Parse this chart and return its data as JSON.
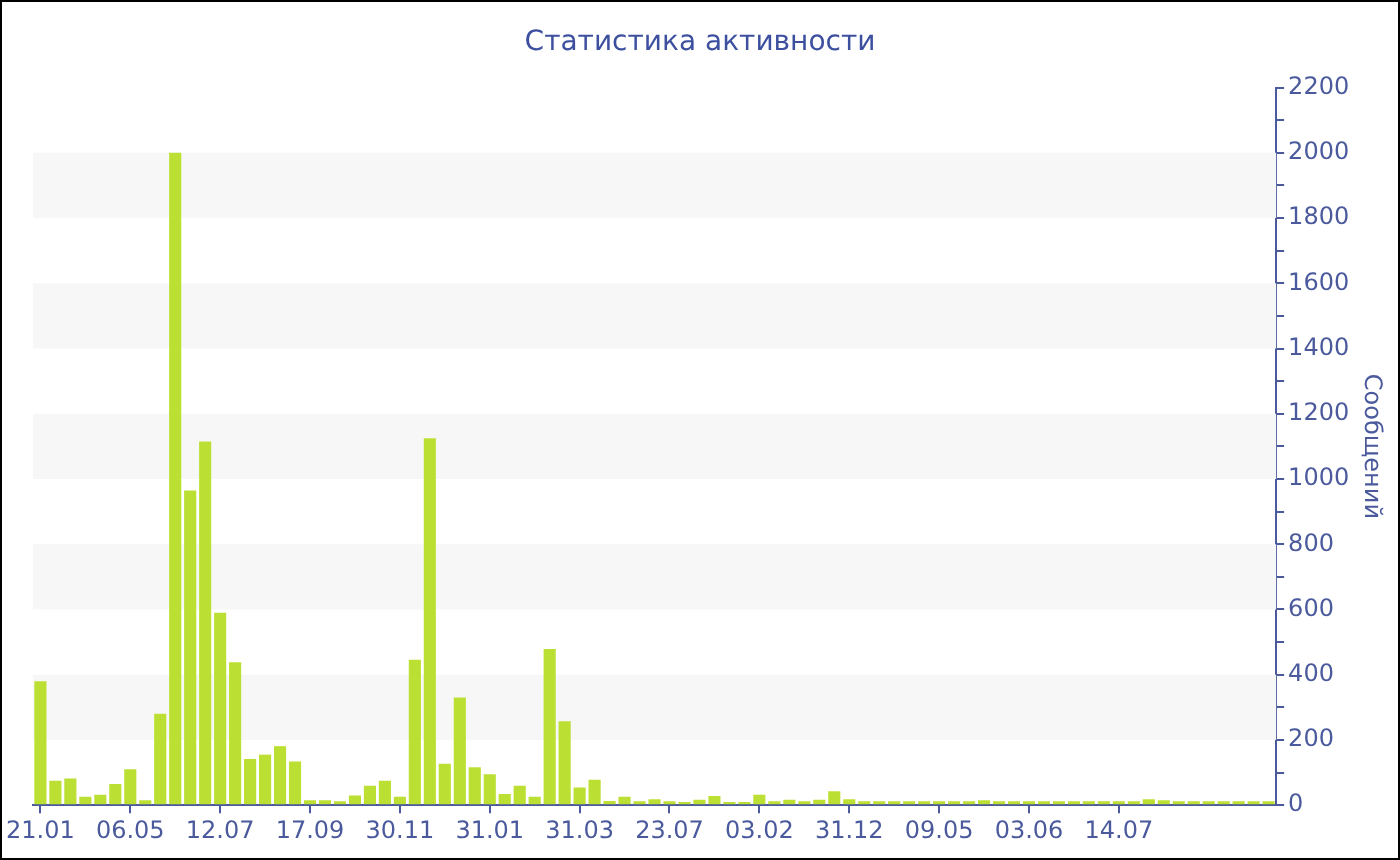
{
  "chart_data": {
    "type": "bar",
    "title": "Статистика активности",
    "ylabel": "Сообщений",
    "categories": [
      "21.01",
      null,
      null,
      null,
      null,
      null,
      "06.05",
      null,
      null,
      null,
      null,
      null,
      "12.07",
      null,
      null,
      null,
      null,
      null,
      "17.09",
      null,
      null,
      null,
      null,
      null,
      "30.11",
      null,
      null,
      null,
      null,
      null,
      "31.01",
      null,
      null,
      null,
      null,
      null,
      "31.03",
      null,
      null,
      null,
      null,
      null,
      "23.07",
      null,
      null,
      null,
      null,
      null,
      "03.02",
      null,
      null,
      null,
      null,
      null,
      "31.12",
      null,
      null,
      null,
      null,
      null,
      "09.05",
      null,
      null,
      null,
      null,
      null,
      "03.06",
      null,
      null,
      null,
      null,
      null,
      "14.07",
      null,
      null,
      null,
      null,
      null,
      null,
      null,
      null,
      null,
      null
    ],
    "values": [
      380,
      75,
      82,
      26,
      32,
      65,
      110,
      15,
      280,
      2000,
      965,
      1115,
      590,
      438,
      142,
      155,
      181,
      134,
      15,
      15,
      12,
      30,
      60,
      75,
      26,
      446,
      1125,
      127,
      330,
      116,
      95,
      34,
      60,
      26,
      479,
      257,
      54,
      78,
      13,
      26,
      12,
      18,
      12,
      10,
      17,
      28,
      10,
      10,
      32,
      12,
      17,
      12,
      17,
      43,
      18,
      12,
      12,
      12,
      12,
      12,
      12,
      12,
      12,
      15,
      12,
      12,
      12,
      12,
      12,
      12,
      12,
      12,
      12,
      12,
      18,
      15,
      12,
      12,
      12,
      12,
      12,
      12,
      12
    ],
    "color": "#bbe033",
    "ylim": [
      0,
      2200
    ],
    "yticks": [
      0,
      {
        "value": 100,
        "label": null
      },
      200,
      {
        "value": 300,
        "label": null
      },
      400,
      {
        "value": 500,
        "label": null
      },
      600,
      {
        "value": 700,
        "label": null
      },
      800,
      {
        "value": 900,
        "label": null
      },
      1000,
      {
        "value": 1100,
        "label": null
      },
      1200,
      {
        "value": 1300,
        "label": null
      },
      1400,
      {
        "value": 1500,
        "label": null
      },
      1600,
      {
        "value": 1700,
        "label": null
      },
      1800,
      {
        "value": 1900,
        "label": null
      },
      2000,
      {
        "value": 2100,
        "label": null
      },
      2200
    ],
    "bands": [
      {
        "axis": "y",
        "from": 200,
        "to": 400,
        "color": "#f7f7f7"
      },
      {
        "axis": "y",
        "from": 600,
        "to": 800,
        "color": "#f7f7f7"
      },
      {
        "axis": "y",
        "from": 1000,
        "to": 1200,
        "color": "#f7f7f7"
      },
      {
        "axis": "y",
        "from": 1400,
        "to": 1600,
        "color": "#f7f7f7"
      },
      {
        "axis": "y",
        "from": 1800,
        "to": 2000,
        "color": "#f7f7f7"
      }
    ]
  }
}
